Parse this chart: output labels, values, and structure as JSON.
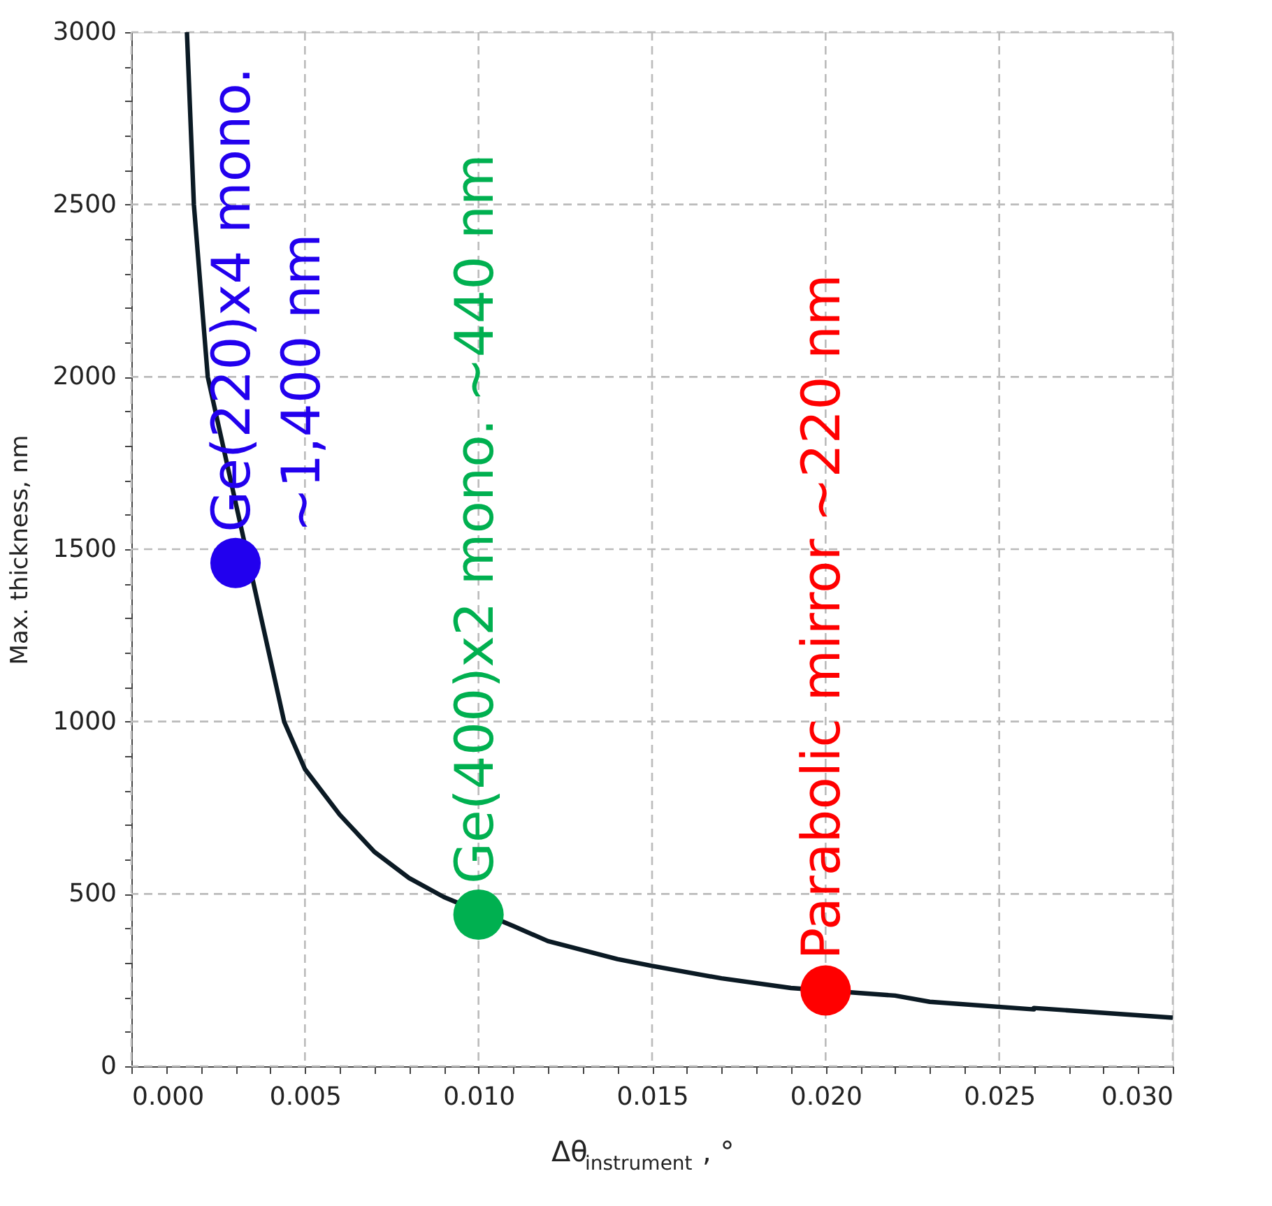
{
  "chart_data": {
    "type": "line",
    "xlabel": "Δθ$_{instrument}$, °",
    "ylabel": "Max. thickness, nm",
    "series": [
      {
        "color": "#0b1a24",
        "x": [
          0.0016,
          0.0018,
          0.0022,
          0.0044,
          0.005,
          0.006,
          0.007,
          0.008,
          0.009,
          0.011,
          0.012,
          0.014,
          0.015,
          0.017,
          0.019,
          0.022,
          0.023,
          0.026,
          0.026,
          0.03
        ],
        "values": [
          3000,
          2500,
          2000,
          1000,
          862,
          730,
          622,
          546,
          491,
          407,
          363,
          311,
          291,
          255,
          227,
          205,
          187,
          165,
          169,
          141
        ]
      },
      {
        "type": "scatter",
        "x": [
          0.003,
          0.01,
          0.02
        ],
        "values": [
          1460,
          440,
          220
        ],
        "colors": [
          "#2200ee",
          "#00b050",
          "#ff0000"
        ]
      }
    ],
    "annotations": [
      {
        "text": "Ge(220)x4 mono.\n~1,400 nm",
        "x": 0.003,
        "y": 1460
      },
      {
        "text": "Ge(400)x2 mono. ~440 nm",
        "x": 0.01,
        "y": 440
      },
      {
        "text": "Parabolic mirror ~220 nm",
        "x": 0.02,
        "y": 220
      }
    ],
    "xlim": [
      0,
      0.03
    ],
    "ylim": [
      0,
      3000
    ],
    "xticks": [
      {
        "value": 0,
        "label": "0.000"
      },
      {
        "value": 0.001,
        "label": null
      },
      {
        "value": 0.002,
        "label": null
      },
      {
        "value": 0.003,
        "label": null
      },
      {
        "value": 0.004,
        "label": null
      },
      {
        "value": 0.005,
        "label": "0.005"
      },
      {
        "value": 0.006,
        "label": null
      },
      {
        "value": 0.007,
        "label": null
      },
      {
        "value": 0.008,
        "label": null
      },
      {
        "value": 0.009,
        "label": null
      },
      {
        "value": 0.01,
        "label": "0.010"
      },
      {
        "value": 0.011,
        "label": null
      },
      {
        "value": 0.012,
        "label": null
      },
      {
        "value": 0.013,
        "label": null
      },
      {
        "value": 0.014,
        "label": null
      },
      {
        "value": 0.015,
        "label": "0.015"
      },
      {
        "value": 0.016,
        "label": null
      },
      {
        "value": 0.017,
        "label": null
      },
      {
        "value": 0.018,
        "label": null
      },
      {
        "value": 0.019,
        "label": null
      },
      {
        "value": 0.02,
        "label": "0.020"
      },
      {
        "value": 0.021,
        "label": null
      },
      {
        "value": 0.022,
        "label": null
      },
      {
        "value": 0.023,
        "label": null
      },
      {
        "value": 0.024,
        "label": null
      },
      {
        "value": 0.025,
        "label": "0.025"
      },
      {
        "value": 0.026,
        "label": null
      },
      {
        "value": 0.027,
        "label": null
      },
      {
        "value": 0.028,
        "label": null
      },
      {
        "value": 0.029,
        "label": null
      },
      {
        "value": 0.03,
        "label": "0.030"
      }
    ],
    "yticks": [
      0,
      {
        "value": 100,
        "label": null
      },
      {
        "value": 200,
        "label": null
      },
      {
        "value": 300,
        "label": null
      },
      {
        "value": 400,
        "label": null
      },
      500,
      {
        "value": 600,
        "label": null
      },
      {
        "value": 700,
        "label": null
      },
      {
        "value": 800,
        "label": null
      },
      {
        "value": 900,
        "label": null
      },
      1000,
      {
        "value": 1100,
        "label": null
      },
      {
        "value": 1200,
        "label": null
      },
      {
        "value": 1300,
        "label": null
      },
      {
        "value": 1400,
        "label": null
      },
      1500,
      {
        "value": 1600,
        "label": null
      },
      {
        "value": 1700,
        "label": null
      },
      {
        "value": 1800,
        "label": null
      },
      {
        "value": 1900,
        "label": null
      },
      2000,
      {
        "value": 2100,
        "label": null
      },
      {
        "value": 2200,
        "label": null
      },
      {
        "value": 2300,
        "label": null
      },
      {
        "value": 2400,
        "label": null
      },
      2500,
      {
        "value": 2600,
        "label": null
      },
      {
        "value": 2700,
        "label": null
      },
      {
        "value": 2800,
        "label": null
      },
      {
        "value": 2900,
        "label": null
      },
      3000
    ],
    "grid": true,
    "line_style": "solid"
  }
}
